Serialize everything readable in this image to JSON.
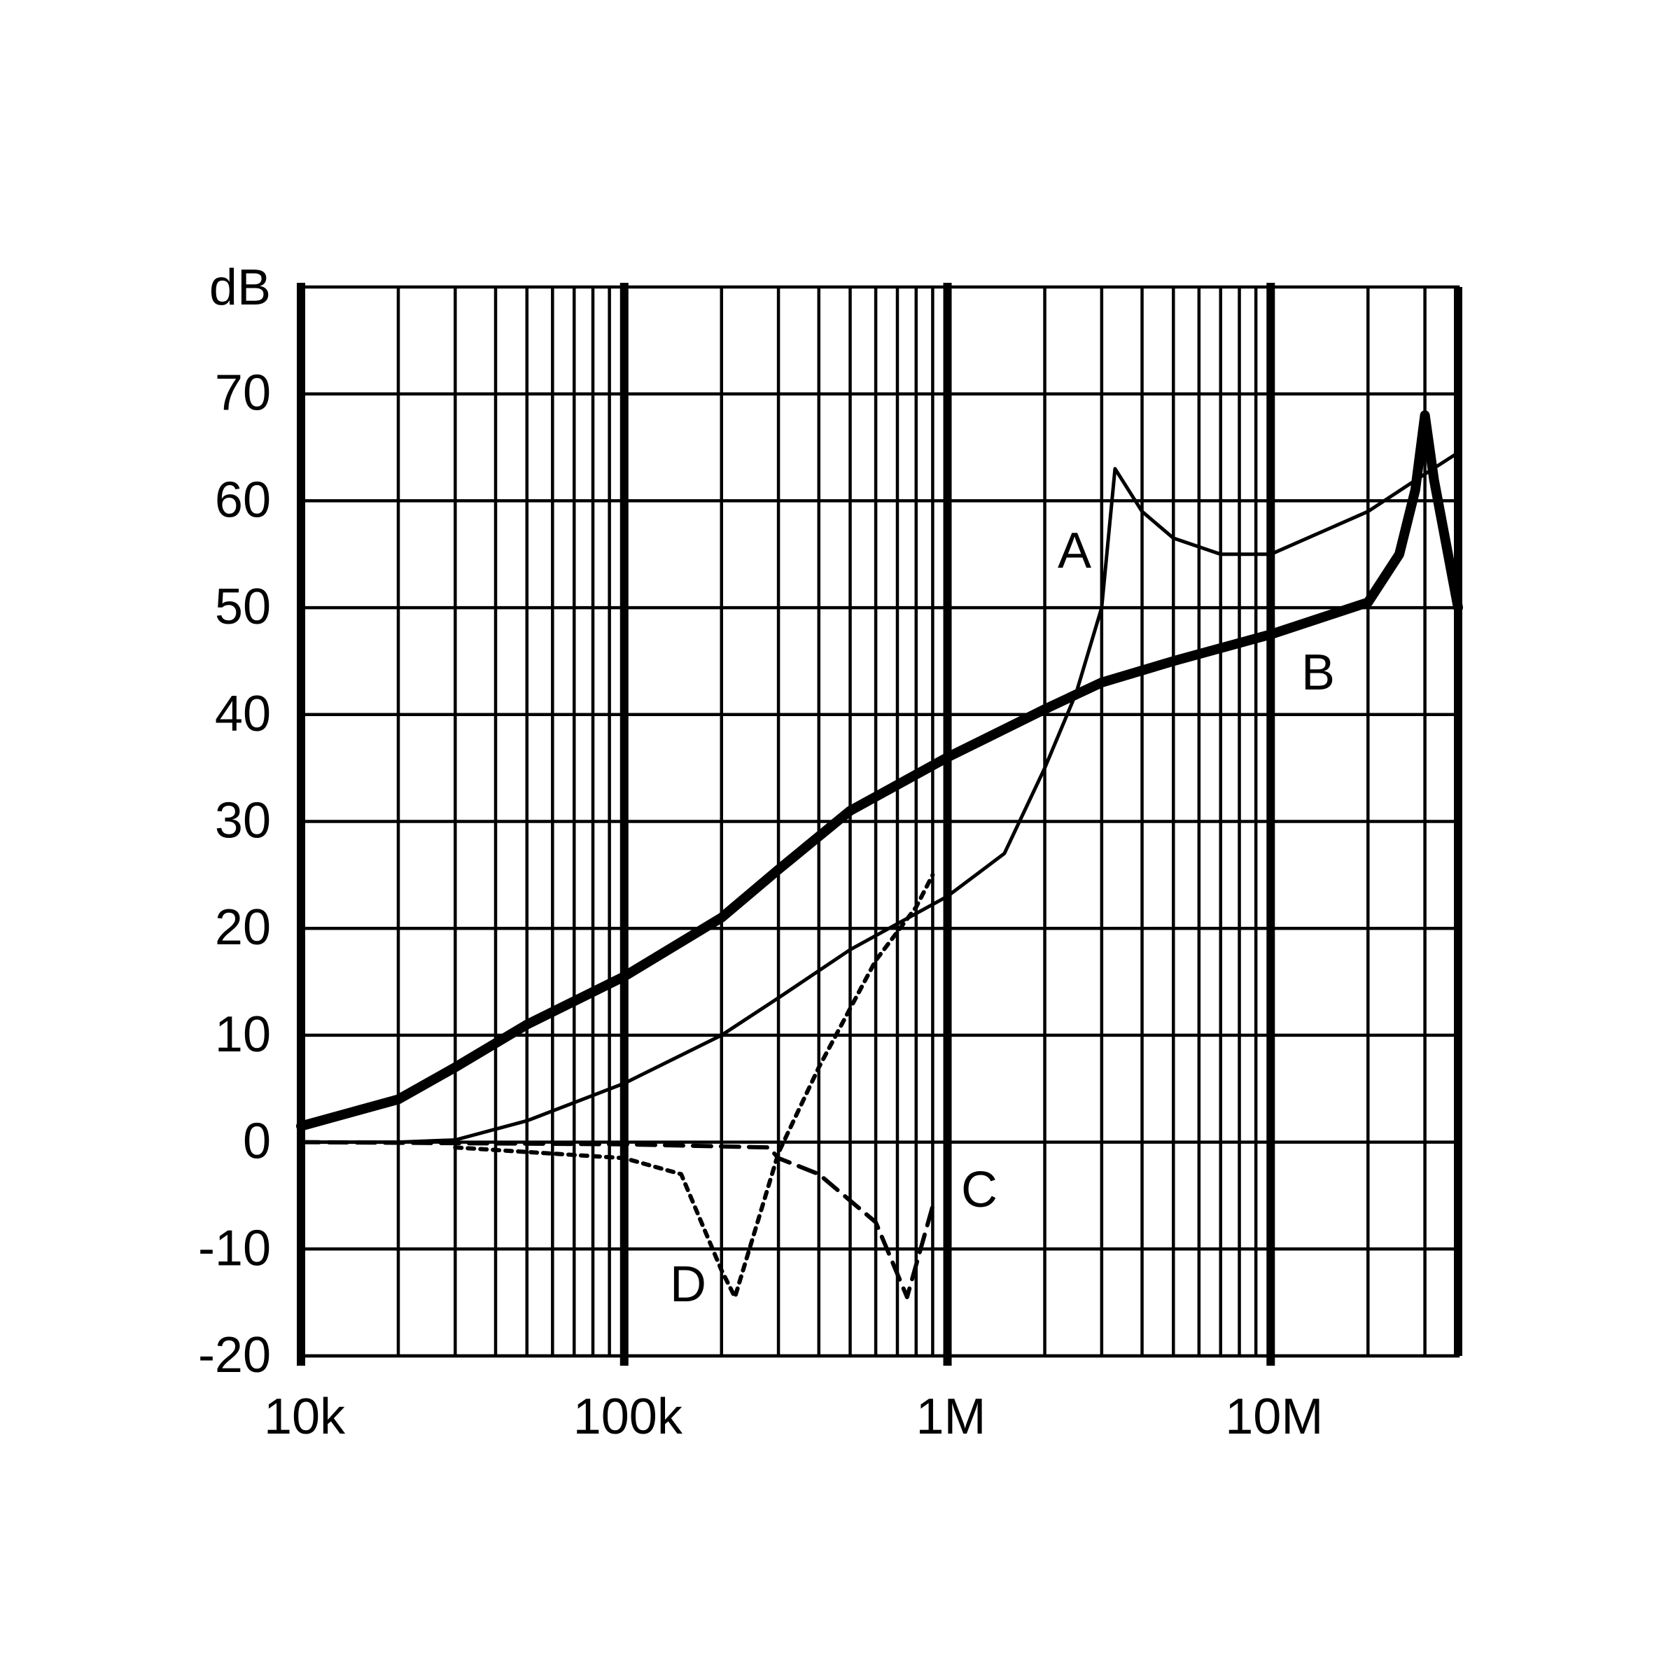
{
  "chart_data": {
    "type": "line",
    "y_label": "dB",
    "xlog": true,
    "xlim": [
      10000,
      38000000
    ],
    "xticks": [
      {
        "value": 10000,
        "label": "10k"
      },
      {
        "value": 100000,
        "label": "100k"
      },
      {
        "value": 1000000,
        "label": "1M"
      },
      {
        "value": 10000000,
        "label": "10M"
      }
    ],
    "xminor_ticks": [
      20000,
      30000,
      40000,
      50000,
      60000,
      70000,
      80000,
      90000,
      200000,
      300000,
      400000,
      500000,
      600000,
      700000,
      800000,
      900000,
      2000000,
      3000000,
      4000000,
      5000000,
      6000000,
      7000000,
      8000000,
      9000000,
      20000000,
      30000000
    ],
    "ylim": [
      -20,
      80
    ],
    "yticks": [
      -20,
      -10,
      0,
      10,
      20,
      30,
      40,
      50,
      60,
      70
    ],
    "grid": true,
    "series": [
      {
        "name": "A",
        "color": "#000000",
        "width": 5,
        "dash": "none",
        "x": [
          10000,
          20000,
          30000,
          50000,
          100000,
          200000,
          300000,
          500000,
          1000000,
          1500000,
          2000000,
          2500000,
          3000000,
          3300000,
          4000000,
          5000000,
          7000000,
          10000000,
          20000000,
          30000000,
          38000000
        ],
        "values": [
          0,
          0,
          0.2,
          2,
          5.5,
          10,
          13.5,
          18,
          23,
          27,
          35,
          42,
          50,
          63,
          59,
          56.5,
          55,
          55,
          59,
          62.5,
          64.5
        ]
      },
      {
        "name": "B",
        "color": "#000000",
        "width": 14,
        "dash": "none",
        "x": [
          10000,
          20000,
          30000,
          50000,
          100000,
          200000,
          300000,
          500000,
          1000000,
          2000000,
          3000000,
          5000000,
          10000000,
          20000000,
          25000000,
          28000000,
          30000000,
          32000000,
          38000000
        ],
        "values": [
          1.5,
          4,
          7,
          11,
          15.5,
          21,
          25.5,
          31,
          36,
          40.5,
          43,
          45,
          47.5,
          50.5,
          55,
          61,
          68,
          62,
          50
        ]
      },
      {
        "name": "C",
        "color": "#000000",
        "width": 6,
        "dash": "26,14",
        "x": [
          10000,
          100000,
          280000,
          300000,
          400000,
          600000,
          750000,
          900000
        ],
        "values": [
          0,
          -0.2,
          -0.5,
          -1.5,
          -3,
          -7.5,
          -14.5,
          -6
        ]
      },
      {
        "name": "D",
        "color": "#000000",
        "width": 6,
        "dash": "9,9",
        "x": [
          30000,
          100000,
          150000,
          200000,
          220000,
          300000,
          400000,
          600000,
          800000,
          900000
        ],
        "values": [
          -0.5,
          -1.5,
          -3,
          -12,
          -14.5,
          -1,
          7,
          17,
          22,
          25
        ]
      }
    ]
  }
}
